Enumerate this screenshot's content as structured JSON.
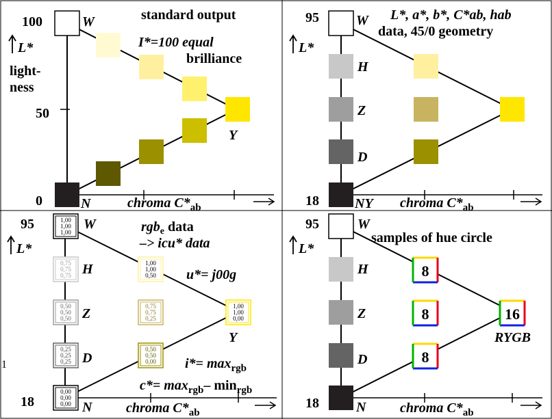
{
  "colors": {
    "white": "#ffffff",
    "black": "#231f20",
    "gray_h": "#c8c8c8",
    "gray_z": "#9e9e9e",
    "gray_d": "#646464",
    "yellow": "#ffe600",
    "yellow_light1": "#fffad2",
    "yellow_light2": "#fff0a0",
    "yellow_light3": "#fff06e",
    "olive1": "#ccbf00",
    "olive2": "#9b9000",
    "olive3": "#5e5800",
    "olive_mid": "#c8b460",
    "hue_red": "#e8001c",
    "hue_green": "#00b300",
    "hue_blue": "#1020e0",
    "hue_yellow": "#ffd800"
  },
  "panel_tl": {
    "label_100": "100",
    "label_50": "50",
    "label_0": "0",
    "label_W": "W",
    "label_N": "N",
    "label_Y": "Y",
    "label_L": "L*",
    "lightness_1": "light-",
    "lightness_2": "ness",
    "title_1": "standard output",
    "title_2": "I*=100 equal",
    "title_3": "brilliance",
    "axis_label": "chroma C*",
    "axis_sub": "ab"
  },
  "panel_tr": {
    "label_95": "95",
    "label_18": "18",
    "label_W": "W",
    "label_H": "H",
    "label_Z": "Z",
    "label_D": "D",
    "label_NY": "NY",
    "label_L": "L*",
    "title_1": "L*, a*, b*, C*ab, hab",
    "title_2": "data, 45/0 geometry",
    "axis_label": "chroma C*",
    "axis_sub": "ab"
  },
  "panel_bl": {
    "label_95": "95",
    "label_18": "18",
    "label_W": "W",
    "label_H": "H",
    "label_Z": "Z",
    "label_D": "D",
    "label_N": "N",
    "label_Y": "Y",
    "label_L": "L*",
    "title_1a": "rgb",
    "title_1b": "e",
    "title_1c": " data",
    "title_2": "–> icu* data",
    "title_3": "u*= j00g",
    "formula_1a": "i*= max",
    "formula_1b": "rgb",
    "formula_2a": "c*= max",
    "formula_2b": "rgb",
    "formula_2c": "– min",
    "formula_2d": "rgb",
    "axis_label": "chroma C*",
    "axis_sub": "ab",
    "edge_mark": "1",
    "boxes": {
      "W": [
        "1,00",
        "1,00",
        "1,00"
      ],
      "H": [
        "0,75",
        "0,75",
        "0,75"
      ],
      "Z": [
        "0,50",
        "0,50",
        "0,50"
      ],
      "D": [
        "0,25",
        "0,25",
        "0,25"
      ],
      "N": [
        "0,00",
        "0,00",
        "0,00"
      ],
      "LY": [
        "1,00",
        "1,00",
        "0,50"
      ],
      "MY": [
        "0,75",
        "0,75",
        "0,25"
      ],
      "DY": [
        "0,50",
        "0,50",
        "0,00"
      ],
      "Y": [
        "1,00",
        "1,00",
        "0,00"
      ]
    }
  },
  "panel_br": {
    "label_95": "95",
    "label_18": "18",
    "label_W": "W",
    "label_H": "H",
    "label_Z": "Z",
    "label_D": "D",
    "label_N": "N",
    "label_L": "L*",
    "title": "samples of hue circle",
    "count_1": "8",
    "count_2": "8",
    "count_3": "8",
    "count_4": "16",
    "label_RYGB": "RYGB",
    "axis_label": "chroma C*",
    "axis_sub": "ab"
  }
}
